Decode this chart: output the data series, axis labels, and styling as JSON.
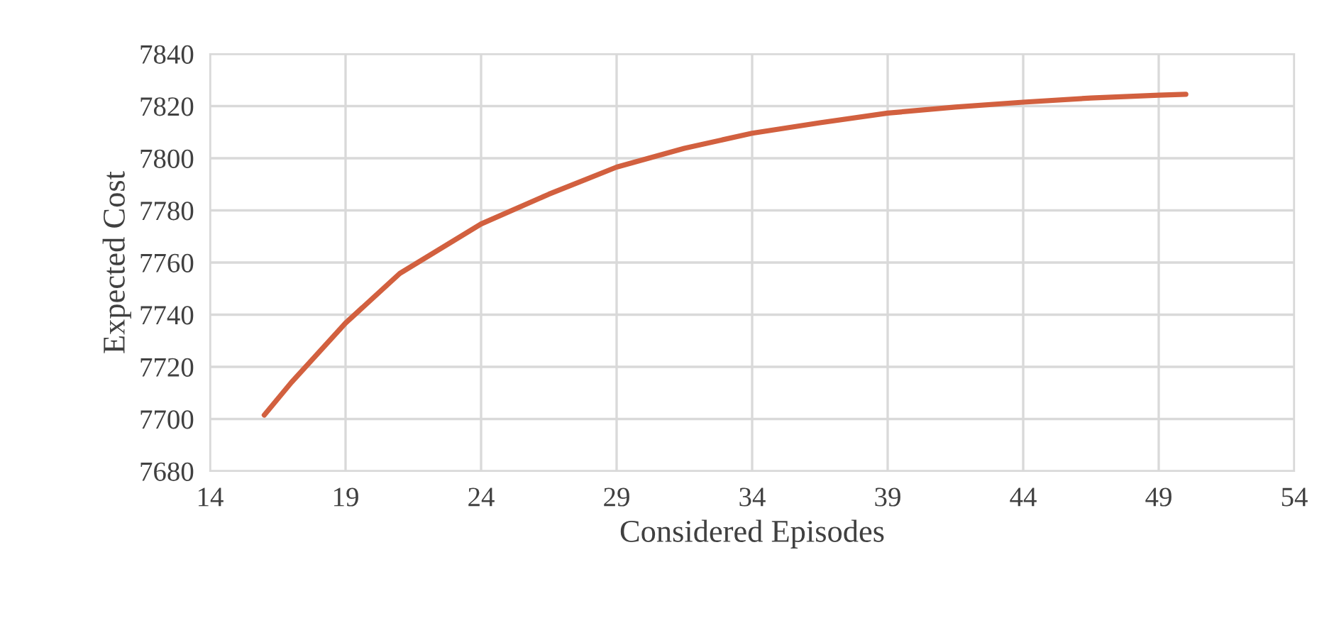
{
  "chart_data": {
    "type": "line",
    "xlabel": "Considered Episodes",
    "ylabel": "Expected Cost",
    "x": [
      16,
      17,
      19,
      21,
      24,
      26.5,
      29,
      31.5,
      34,
      36.5,
      39,
      41.5,
      44,
      46.5,
      49,
      50
    ],
    "series": [
      {
        "color": "#d2603f",
        "values": [
          7701.5,
          7714,
          7736.8,
          7755.8,
          7774.8,
          7786.2,
          7796.6,
          7803.8,
          7809.6,
          7813.6,
          7817.3,
          7819.6,
          7821.5,
          7823.1,
          7824.2,
          7824.5
        ]
      }
    ],
    "xlim": [
      14,
      54
    ],
    "xticks": [
      14,
      19,
      24,
      29,
      34,
      39,
      44,
      49,
      54
    ],
    "ylim": [
      7680,
      7840
    ],
    "yticks": [
      7680,
      7700,
      7720,
      7740,
      7760,
      7780,
      7800,
      7820,
      7840
    ],
    "grid": true,
    "marker": "none",
    "line_style": "solid",
    "legend": false
  }
}
